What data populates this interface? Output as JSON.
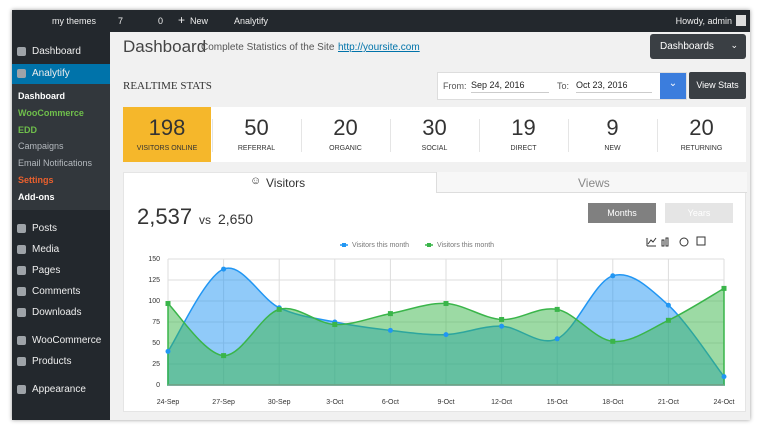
{
  "admin_bar": {
    "site": "my themes",
    "updates": 7,
    "comments": 0,
    "new": "New",
    "plugin": "Analytify",
    "greeting": "Howdy, admin"
  },
  "sidebar": {
    "top": [
      "Dashboard",
      "Analytify"
    ],
    "submenu": [
      "Dashboard",
      "WooCommerce",
      "EDD",
      "Campaigns",
      "Email Notifications",
      "Settings",
      "Add-ons"
    ],
    "content": [
      "Posts",
      "Media",
      "Pages",
      "Comments",
      "Downloads"
    ],
    "shop": [
      "WooCommerce",
      "Products"
    ],
    "appearance": [
      "Appearance"
    ]
  },
  "header": {
    "title": "Dashboard",
    "subtitle": "Complete Statistics of the Site",
    "link": "http://yoursite.com",
    "button": "Dashboards"
  },
  "realtime": {
    "title": "REALTIME STATS",
    "from_label": "From:",
    "from": "Sep 24, 2016",
    "to_label": "To:",
    "to": "Oct 23, 2016",
    "button": "View Stats"
  },
  "stats": [
    {
      "value": 198,
      "label": "VISITORS ONLINE"
    },
    {
      "value": 50,
      "label": "REFERRAL"
    },
    {
      "value": 20,
      "label": "ORGANIC"
    },
    {
      "value": 30,
      "label": "SOCIAL"
    },
    {
      "value": 19,
      "label": "DIRECT"
    },
    {
      "value": 9,
      "label": "NEW"
    },
    {
      "value": 20,
      "label": "RETURNING"
    }
  ],
  "tabs": [
    "Visitors",
    "Views"
  ],
  "totals": {
    "current": "2,537",
    "vs": "vs",
    "previous": "2,650"
  },
  "period": [
    "Months",
    "Years"
  ],
  "chart_data": {
    "type": "area",
    "categories": [
      "24-Sep",
      "27-Sep",
      "30-Sep",
      "3-Oct",
      "6-Oct",
      "9-Oct",
      "12-Oct",
      "15-Oct",
      "18-Oct",
      "21-Oct",
      "24-Oct"
    ],
    "series": [
      {
        "name": "Visitors this month",
        "color": "#2196f3",
        "values": [
          40,
          138,
          92,
          75,
          65,
          60,
          70,
          55,
          130,
          95,
          10
        ]
      },
      {
        "name": "Visitors this month",
        "color": "#3ab54a",
        "values": [
          97,
          35,
          90,
          72,
          85,
          97,
          78,
          90,
          52,
          77,
          115
        ]
      }
    ],
    "ylim": [
      0,
      150
    ],
    "yticks": [
      0,
      25,
      50,
      75,
      100,
      125,
      150
    ],
    "grid": true
  }
}
